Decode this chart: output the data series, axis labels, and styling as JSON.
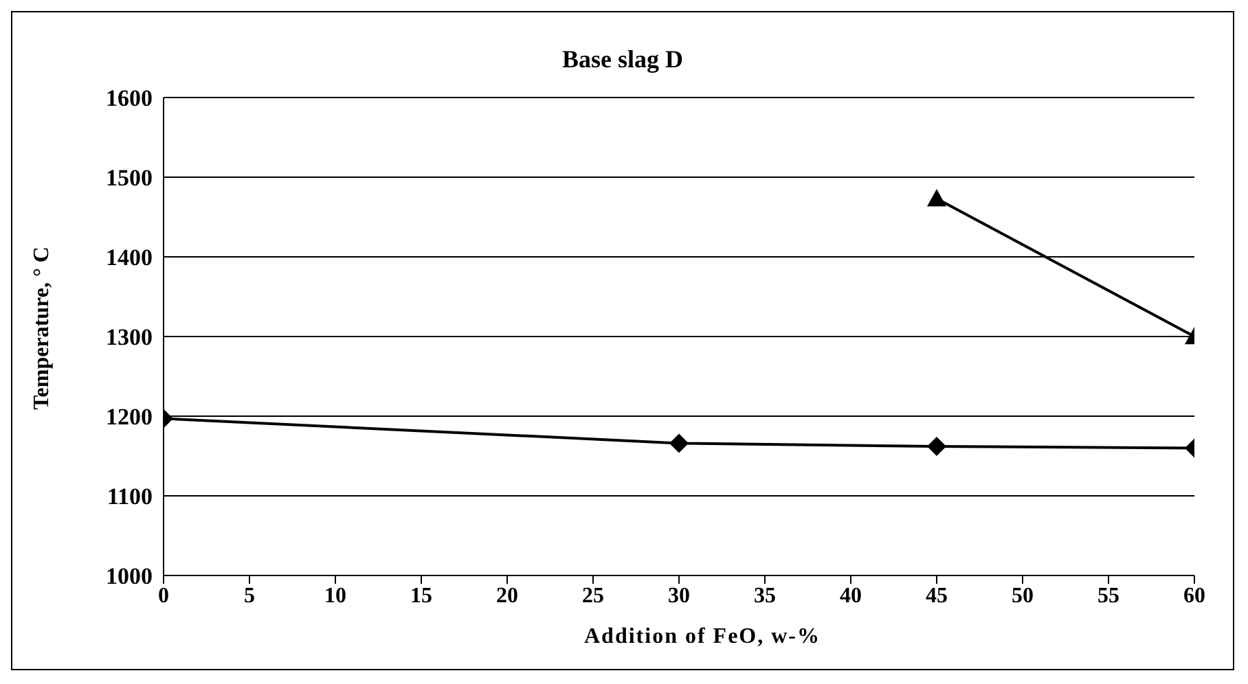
{
  "chart_data": {
    "type": "line",
    "title": "Base slag D",
    "xlabel": "Addition of FeO, w-%",
    "ylabel": "Temperature, ° C",
    "xlim": [
      0,
      60
    ],
    "xticks": [
      0,
      5,
      10,
      15,
      20,
      25,
      30,
      35,
      40,
      45,
      50,
      55,
      60
    ],
    "ylim": [
      1000,
      1600
    ],
    "yticks": [
      1000,
      1100,
      1200,
      1300,
      1400,
      1500,
      1600
    ],
    "grid": "y",
    "line_style": "solid",
    "series": [
      {
        "color": "#000000",
        "marker": "diamond",
        "x": [
          0,
          30,
          45,
          60
        ],
        "values": [
          1197,
          1166,
          1162,
          1160
        ]
      },
      {
        "color": "#000000",
        "marker": "triangle",
        "x": [
          45,
          60
        ],
        "values": [
          1473,
          1300
        ]
      }
    ]
  }
}
